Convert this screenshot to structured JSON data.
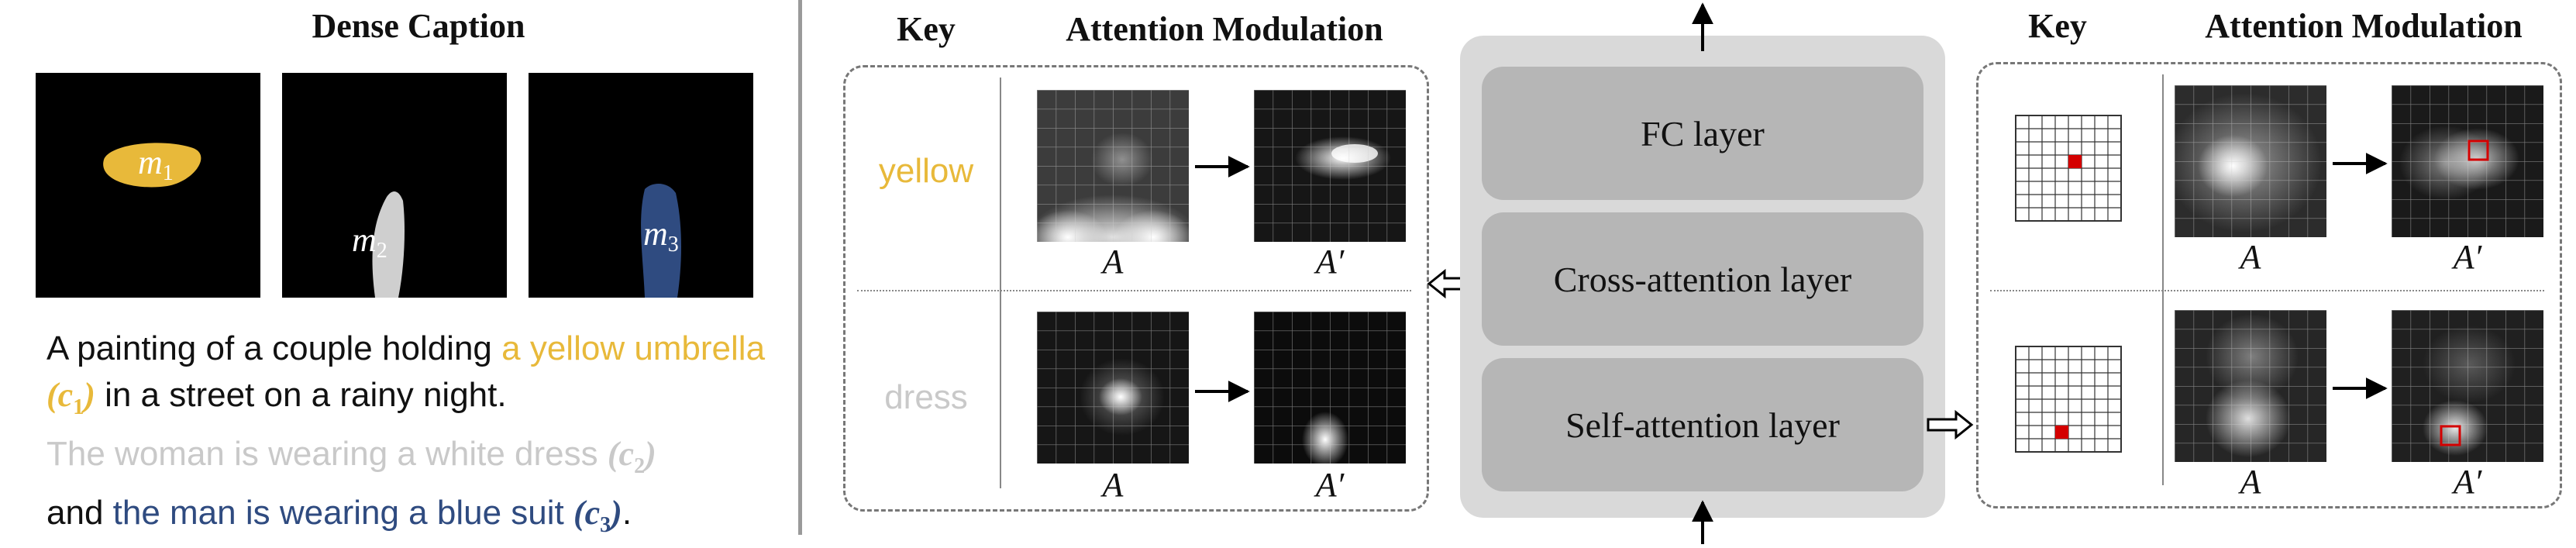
{
  "left_panel": {
    "title": "Dense Caption",
    "masks": [
      "m1",
      "m2",
      "m3"
    ],
    "caption": {
      "p1": "A painting of a couple holding ",
      "c1_text": "a yellow umbrella ",
      "c1_tag": "c1",
      "p2": " in a street on a rainy night.",
      "c2_text": "The woman is wearing a white dress ",
      "c2_tag": "c2",
      "p3": "and ",
      "c3_text": "the man is wearing a blue suit ",
      "c3_tag": "c3",
      "p4": "."
    }
  },
  "middle_panel": {
    "header_key": "Key",
    "header_attention": "Attention Modulation",
    "row1_key": "yellow",
    "row2_key": "dress",
    "label_a": "A",
    "label_a_prime": "A′"
  },
  "block": {
    "fc": "FC layer",
    "cross": "Cross-attention layer",
    "self": "Self-attention layer"
  },
  "right_panel": {
    "header_key": "Key",
    "header_attention": "Attention Modulation",
    "label_a": "A",
    "label_a_prime": "A′"
  },
  "colors": {
    "yellow": "#e8b93a",
    "white_gray": "#c9c9c9",
    "blue": "#2f4b80",
    "query_red": "#d40000"
  }
}
